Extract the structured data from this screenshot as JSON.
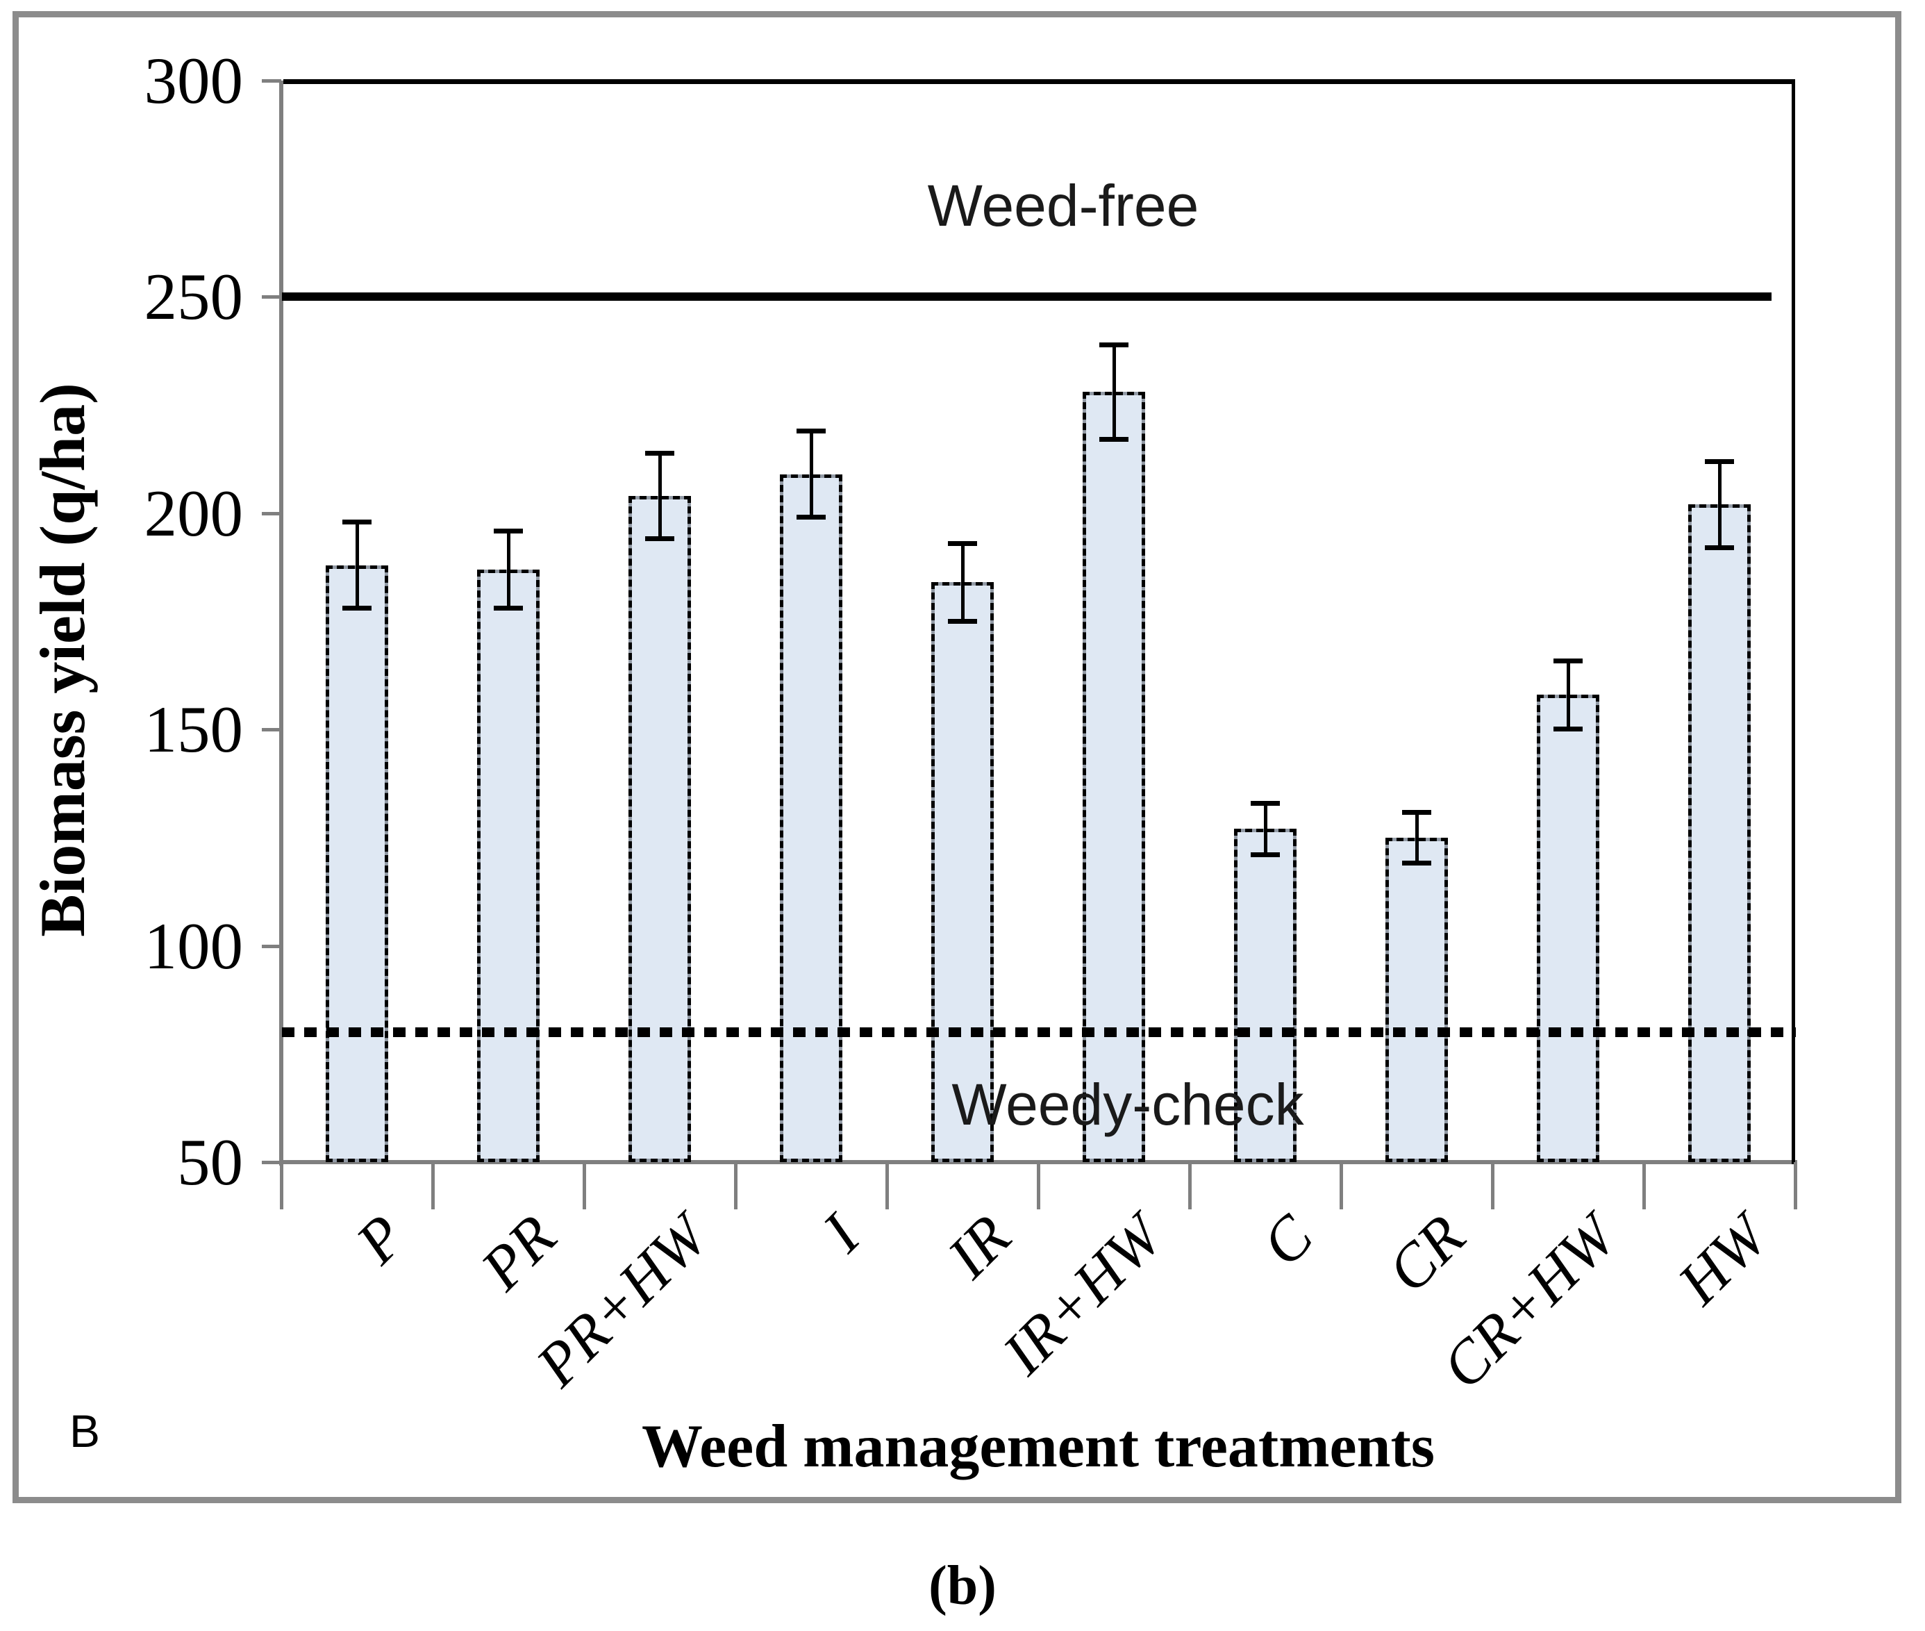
{
  "figure": {
    "panel_label": "B",
    "caption": "(b)"
  },
  "chart_data": {
    "type": "bar",
    "title": "",
    "xlabel": "Weed management treatments",
    "ylabel": "Biomass yield (q/ha)",
    "ylim": [
      50,
      300
    ],
    "yticks": [
      50,
      100,
      150,
      200,
      250,
      300
    ],
    "grid": false,
    "legend": "none",
    "categories": [
      "P",
      "PR",
      "PR+HW",
      "I",
      "IR",
      "IR+HW",
      "C",
      "CR",
      "CR+HW",
      "HW"
    ],
    "series": [
      {
        "name": "Biomass yield",
        "values": [
          188,
          187,
          204,
          209,
          184,
          228,
          127,
          125,
          158,
          202
        ],
        "errors": [
          10,
          9,
          10,
          10,
          9,
          11,
          6,
          6,
          8,
          10
        ]
      }
    ],
    "reference_lines": [
      {
        "label": "Weed-free",
        "value": 250,
        "style": "solid"
      },
      {
        "label": "Weedy-check",
        "value": 80,
        "style": "dashed"
      }
    ],
    "colors": {
      "bar_fill": "#dfe8f3",
      "bar_border_dash": "#000000",
      "bar_border_base": "#929aa5",
      "axis": "#7f7f7f",
      "plot_border": "#000000",
      "reference_line": "#000000",
      "frame": "#8c8c8c"
    }
  }
}
